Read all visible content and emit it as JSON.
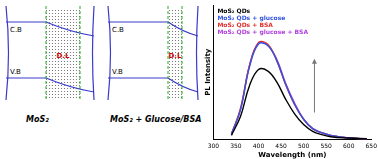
{
  "chart_data": {
    "type": "line",
    "x_label": "Wavelength (nm)",
    "y_label": "PL Intensity",
    "x": [
      340,
      360,
      380,
      400,
      420,
      440,
      460,
      480,
      500,
      520,
      540,
      560,
      600,
      640
    ],
    "series": [
      {
        "name": "MoS₂ QDs",
        "color": "#000000",
        "values": [
          3,
          17,
          40,
          52,
          51,
          43,
          30,
          19,
          11,
          6,
          3.5,
          2,
          1,
          0.5
        ]
      },
      {
        "name": "MoS₂ QDs + glucose",
        "color": "#3355dd",
        "values": [
          4,
          22,
          54,
          71,
          70,
          59,
          41,
          26,
          15,
          8,
          5,
          3,
          1,
          0.5
        ]
      },
      {
        "name": "MoS₂ QDs + BSA",
        "color": "#e03030",
        "values": [
          4,
          23,
          55,
          72,
          71,
          59,
          41,
          26,
          15,
          8,
          5,
          3,
          1,
          0.5
        ]
      },
      {
        "name": "MoS₂ QDs + glucose + BSA",
        "color": "#b040e0",
        "values": [
          4,
          22,
          55,
          72,
          70,
          60,
          42,
          27,
          15,
          8,
          5,
          3,
          1,
          0.5
        ]
      }
    ],
    "xlim": [
      300,
      650
    ],
    "xticks": [
      300,
      350,
      400,
      450,
      500,
      550,
      600,
      650
    ],
    "ylim": [
      0,
      100
    ],
    "tick_labels": "x",
    "grid": false,
    "legend": "top-left"
  },
  "diagram": {
    "panels": [
      {
        "label": "MoS₂",
        "cb": "C.B",
        "vb": "V.B",
        "dl": "D.L"
      },
      {
        "label": "MoS₂ + Glucose/BSA",
        "cb": "C.B",
        "vb": "V.B",
        "dl": "D.L"
      }
    ]
  }
}
